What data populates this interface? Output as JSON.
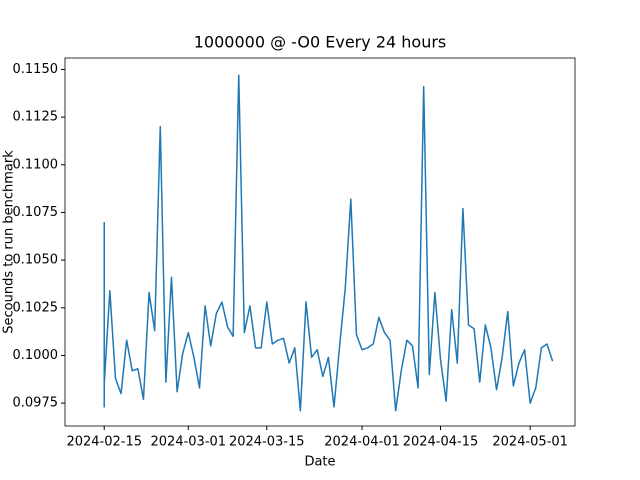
{
  "chart_data": {
    "type": "line",
    "title": "1000000 @ -O0 Every 24 hours",
    "xlabel": "Date",
    "ylabel": "Secounds to run benchmark",
    "x": [
      "2024-02-15",
      "2024-02-15",
      "2024-02-15",
      "2024-02-16",
      "2024-02-17",
      "2024-02-18",
      "2024-02-19",
      "2024-02-20",
      "2024-02-21",
      "2024-02-22",
      "2024-02-23",
      "2024-02-24",
      "2024-02-25",
      "2024-02-26",
      "2024-02-27",
      "2024-02-28",
      "2024-02-29",
      "2024-03-01",
      "2024-03-02",
      "2024-03-03",
      "2024-03-04",
      "2024-03-05",
      "2024-03-06",
      "2024-03-07",
      "2024-03-08",
      "2024-03-09",
      "2024-03-10",
      "2024-03-11",
      "2024-03-12",
      "2024-03-13",
      "2024-03-14",
      "2024-03-15",
      "2024-03-16",
      "2024-03-17",
      "2024-03-18",
      "2024-03-19",
      "2024-03-20",
      "2024-03-21",
      "2024-03-22",
      "2024-03-23",
      "2024-03-24",
      "2024-03-25",
      "2024-03-26",
      "2024-03-27",
      "2024-03-28",
      "2024-03-29",
      "2024-03-30",
      "2024-03-31",
      "2024-04-01",
      "2024-04-02",
      "2024-04-03",
      "2024-04-04",
      "2024-04-05",
      "2024-04-06",
      "2024-04-07",
      "2024-04-08",
      "2024-04-09",
      "2024-04-10",
      "2024-04-11",
      "2024-04-12",
      "2024-04-13",
      "2024-04-14",
      "2024-04-15",
      "2024-04-16",
      "2024-04-17",
      "2024-04-18",
      "2024-04-19",
      "2024-04-20",
      "2024-04-21",
      "2024-04-22",
      "2024-04-23",
      "2024-04-24",
      "2024-04-25",
      "2024-04-26",
      "2024-04-27",
      "2024-04-28",
      "2024-04-29",
      "2024-04-30",
      "2024-05-01",
      "2024-05-02",
      "2024-05-03",
      "2024-05-04",
      "2024-05-05"
    ],
    "series": [
      {
        "color": "#1f77b4",
        "values": [
          0.107,
          0.0973,
          0.0985,
          0.1034,
          0.0988,
          0.098,
          0.1008,
          0.0992,
          0.0993,
          0.0977,
          0.1033,
          0.1013,
          0.112,
          0.0986,
          0.1041,
          0.0981,
          0.1001,
          0.1012,
          0.0999,
          0.0983,
          0.1026,
          0.1005,
          0.1022,
          0.1028,
          0.1015,
          0.101,
          0.1147,
          0.1012,
          0.1026,
          0.1004,
          0.1004,
          0.1028,
          0.1006,
          0.1008,
          0.1009,
          0.0996,
          0.1004,
          0.0971,
          0.1028,
          0.0999,
          0.1003,
          0.0989,
          0.0999,
          0.0973,
          0.1005,
          0.1035,
          0.1082,
          0.1011,
          0.1003,
          0.1004,
          0.1006,
          0.102,
          0.1012,
          0.1008,
          0.0971,
          0.0992,
          0.1008,
          0.1005,
          0.0983,
          0.1141,
          0.099,
          0.1033,
          0.0998,
          0.0976,
          0.1024,
          0.0996,
          0.1077,
          0.1016,
          0.1014,
          0.0986,
          0.1016,
          0.1004,
          0.0982,
          0.0999,
          0.1023,
          0.0984,
          0.0996,
          0.1003,
          0.0975,
          0.0983,
          0.1004,
          0.1006,
          0.0997
        ]
      }
    ],
    "xlim": [
      "2024-02-08",
      "2024-05-09"
    ],
    "xticks": [
      "2024-02-15",
      "2024-03-01",
      "2024-03-15",
      "2024-04-01",
      "2024-04-15",
      "2024-05-01"
    ],
    "ylim": [
      0.0963,
      0.1156
    ],
    "yticks": [
      0.0975,
      {
        "value": 0.1,
        "label": "0.1000"
      },
      0.1025,
      {
        "value": 0.105,
        "label": "0.1050"
      },
      0.1075,
      {
        "value": 0.11,
        "label": "0.1100"
      },
      0.1125,
      {
        "value": 0.115,
        "label": "0.1150"
      }
    ]
  }
}
